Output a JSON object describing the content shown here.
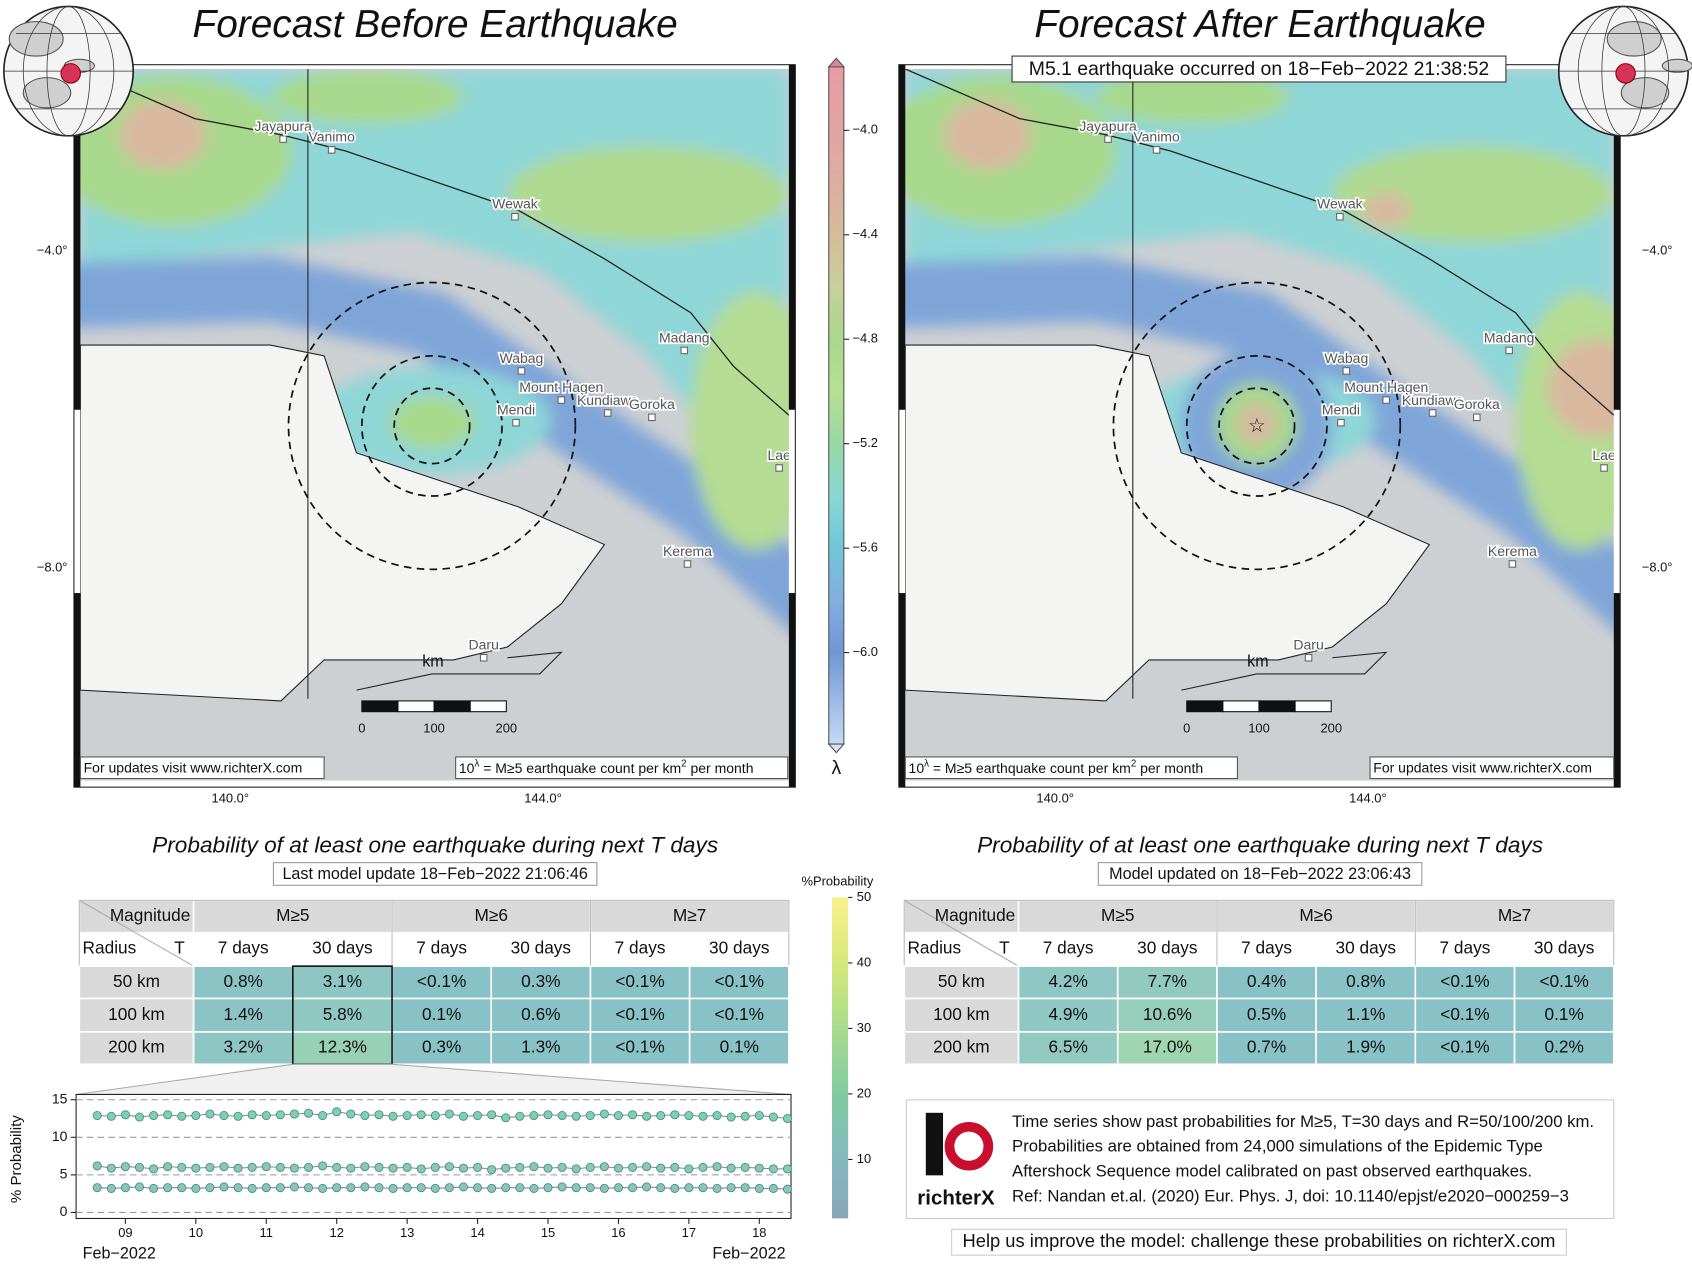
{
  "maps": [
    {
      "title": "Forecast Before Earthquake",
      "cities": [
        "Jayapura",
        "Vanimo",
        "Wewak",
        "Wabag",
        "Madang",
        "Mount Hagen",
        "Kundiawa",
        "Goroka",
        "Mendi",
        "Lae",
        "Kerema",
        "Daru"
      ],
      "lat_labels": [
        "−4.0°",
        "−8.0°"
      ],
      "lon_labels": [
        "140.0°",
        "144.0°"
      ],
      "scale": {
        "unit": "km",
        "ticks": [
          0,
          100,
          200
        ]
      },
      "url_note": "For updates visit www.richterX.com",
      "url_corner": "left",
      "legend": {
        "base": "10",
        "exp": "λ",
        "text": " = M≥5 earthquake count per km",
        "sup": "2",
        "tail": " per month"
      }
    },
    {
      "title": "Forecast After Earthquake",
      "annotation": "M5.1 earthquake occurred on 18−Feb−2022 21:38:52",
      "cities": [
        "Jayapura",
        "Vanimo",
        "Wewak",
        "Wabag",
        "Madang",
        "Mount Hagen",
        "Kundiawa",
        "Goroka",
        "Mendi",
        "Lae",
        "Kerema",
        "Daru"
      ],
      "lat_labels": [
        "−4.0°",
        "−8.0°"
      ],
      "lon_labels": [
        "140.0°",
        "144.0°"
      ],
      "scale": {
        "unit": "km",
        "ticks": [
          0,
          100,
          200
        ]
      },
      "url_note": "For updates visit www.richterX.com",
      "url_corner": "right",
      "legend": {
        "base": "10",
        "exp": "λ",
        "text": " = M≥5 earthquake count per km",
        "sup": "2",
        "tail": " per month"
      }
    }
  ],
  "colorbar": {
    "label": "λ",
    "lim": [
      -6.35,
      -3.757
    ],
    "ticks": [
      {
        "value": -4.0,
        "label": "−4.0"
      },
      {
        "value": -4.4,
        "label": "−4.4"
      },
      {
        "value": -4.8,
        "label": "−4.8"
      },
      {
        "value": -5.2,
        "label": "−5.2"
      },
      {
        "value": -5.6,
        "label": "−5.6"
      },
      {
        "value": -6.0,
        "label": "−6.0"
      }
    ]
  },
  "tables": [
    {
      "title": "Probability of at least one earthquake during next T days",
      "subtitle": "Last model update 18−Feb−2022 21:06:46",
      "header": {
        "magnitude": "Magnitude",
        "radius": "Radius",
        "t": "T",
        "magnitudes": [
          "M≥5",
          "M≥6",
          "M≥7"
        ],
        "periods": [
          "7 days",
          "30 days",
          "7 days",
          "30 days",
          "7 days",
          "30 days"
        ]
      },
      "rows": [
        {
          "radius": "50 km",
          "cells": [
            "0.8%",
            "3.1%",
            "<0.1%",
            "0.3%",
            "<0.1%",
            "<0.1%"
          ]
        },
        {
          "radius": "100 km",
          "cells": [
            "1.4%",
            "5.8%",
            "0.1%",
            "0.6%",
            "<0.1%",
            "<0.1%"
          ]
        },
        {
          "radius": "200 km",
          "cells": [
            "3.2%",
            "12.3%",
            "0.3%",
            "1.3%",
            "<0.1%",
            "0.1%"
          ]
        }
      ],
      "colors": [
        [
          "#8cc4c6",
          "#8ec6c4",
          "#88c2c6",
          "#88c2c6",
          "#88c2c6",
          "#88c2c6"
        ],
        [
          "#8cc4c6",
          "#90c8c2",
          "#88c2c6",
          "#88c2c6",
          "#88c2c6",
          "#88c2c6"
        ],
        [
          "#8ec6c4",
          "#98d0b6",
          "#88c2c6",
          "#88c2c6",
          "#88c2c6",
          "#88c2c6"
        ]
      ]
    },
    {
      "title": "Probability of at least one earthquake during next T days",
      "subtitle": "Model updated on 18−Feb−2022 23:06:43",
      "header": {
        "magnitude": "Magnitude",
        "radius": "Radius",
        "t": "T",
        "magnitudes": [
          "M≥5",
          "M≥6",
          "M≥7"
        ],
        "periods": [
          "7 days",
          "30 days",
          "7 days",
          "30 days",
          "7 days",
          "30 days"
        ]
      },
      "rows": [
        {
          "radius": "50 km",
          "cells": [
            "4.2%",
            "7.7%",
            "0.4%",
            "0.8%",
            "<0.1%",
            "<0.1%"
          ]
        },
        {
          "radius": "100 km",
          "cells": [
            "4.9%",
            "10.6%",
            "0.5%",
            "1.1%",
            "<0.1%",
            "0.1%"
          ]
        },
        {
          "radius": "200 km",
          "cells": [
            "6.5%",
            "17.0%",
            "0.7%",
            "1.9%",
            "<0.1%",
            "0.2%"
          ]
        }
      ],
      "colors": [
        [
          "#8fc7c4",
          "#93cabf",
          "#88c2c6",
          "#88c2c6",
          "#88c2c6",
          "#88c2c6"
        ],
        [
          "#90c8c3",
          "#96cebb",
          "#88c2c6",
          "#88c2c6",
          "#88c2c6",
          "#88c2c6"
        ],
        [
          "#92c9c0",
          "#9fd6b0",
          "#88c2c6",
          "#88c2c6",
          "#88c2c6",
          "#88c2c6"
        ]
      ]
    }
  ],
  "probability_colorbar": {
    "label": "%Probability",
    "lim": [
      1,
      50
    ],
    "ticks": [
      10,
      20,
      30,
      40,
      50
    ]
  },
  "chart_data": {
    "type": "line",
    "ylabel": "% Probability",
    "xlabel_start": "Feb−2022",
    "xlabel_end": "Feb−2022",
    "x": [
      8.6,
      8.8,
      9,
      9.2,
      9.4,
      9.6,
      9.8,
      10,
      10.2,
      10.4,
      10.6,
      10.8,
      11,
      11.2,
      11.4,
      11.6,
      11.8,
      12,
      12.2,
      12.4,
      12.6,
      12.8,
      13,
      13.2,
      13.4,
      13.6,
      13.8,
      14,
      14.2,
      14.4,
      14.6,
      14.8,
      15,
      15.2,
      15.4,
      15.6,
      15.8,
      16,
      16.2,
      16.4,
      16.6,
      16.8,
      17,
      17.2,
      17.4,
      17.6,
      17.8,
      18,
      18.2,
      18.4
    ],
    "series": [
      {
        "color": "#7fcfb4",
        "values": [
          12.9,
          12.8,
          13.0,
          12.7,
          12.9,
          13.0,
          12.8,
          12.9,
          13.1,
          12.9,
          12.8,
          13.0,
          12.9,
          13.0,
          13.1,
          13.2,
          12.9,
          13.4,
          13.1,
          12.9,
          13.0,
          12.8,
          12.9,
          13.0,
          12.9,
          13.1,
          12.8,
          12.9,
          13.0,
          12.6,
          12.8,
          12.9,
          13.0,
          12.9,
          12.8,
          12.9,
          13.1,
          12.9,
          13.0,
          12.8,
          12.9,
          13.0,
          12.9,
          12.8,
          12.9,
          12.7,
          12.8,
          12.9,
          12.7,
          12.5
        ]
      },
      {
        "color": "#86c9b8",
        "values": [
          6.2,
          5.9,
          6.1,
          6.0,
          5.8,
          6.1,
          6.0,
          5.9,
          6.0,
          6.1,
          5.9,
          6.0,
          6.1,
          6.0,
          5.9,
          6.0,
          6.2,
          6.0,
          5.9,
          6.1,
          6.0,
          5.9,
          6.0,
          5.8,
          6.0,
          6.1,
          5.9,
          6.0,
          5.7,
          5.9,
          6.0,
          6.1,
          5.9,
          6.0,
          5.8,
          6.0,
          6.1,
          5.9,
          6.0,
          6.1,
          5.9,
          6.0,
          5.8,
          6.0,
          6.1,
          5.9,
          6.0,
          5.9,
          5.8,
          5.8
        ]
      },
      {
        "color": "#8ac4bc",
        "values": [
          3.3,
          3.2,
          3.3,
          3.4,
          3.2,
          3.3,
          3.3,
          3.2,
          3.3,
          3.4,
          3.3,
          3.2,
          3.3,
          3.3,
          3.4,
          3.3,
          3.2,
          3.3,
          3.3,
          3.4,
          3.3,
          3.2,
          3.3,
          3.3,
          3.2,
          3.3,
          3.4,
          3.3,
          3.2,
          3.3,
          3.3,
          3.2,
          3.3,
          3.4,
          3.3,
          3.3,
          3.2,
          3.3,
          3.3,
          3.4,
          3.3,
          3.2,
          3.3,
          3.3,
          3.2,
          3.3,
          3.3,
          3.2,
          3.2,
          3.1
        ]
      }
    ],
    "xlim": [
      8.3,
      18.45
    ],
    "ylim": [
      -0.8,
      15.7
    ],
    "xticks": [
      {
        "value": 9,
        "label": "09"
      },
      10,
      11,
      12,
      13,
      14,
      15,
      16,
      17,
      18
    ],
    "yticks": [
      0,
      5,
      10,
      15
    ],
    "grid": true
  },
  "info": {
    "logo": "richterX",
    "lines": [
      "Time series show past probabilities for M≥5, T=30 days and R=50/100/200 km.",
      "Probabilities are obtained from 24,000 simulations of the Epidemic Type",
      "Aftershock Sequence model calibrated on past observed earthquakes.",
      "Ref: Nandan et.al. (2020) Eur. Phys. J, doi: 10.1140/epjst/e2020−000259−3"
    ],
    "footer": "Help us improve the model: challenge these probabilities on richterX.com"
  }
}
